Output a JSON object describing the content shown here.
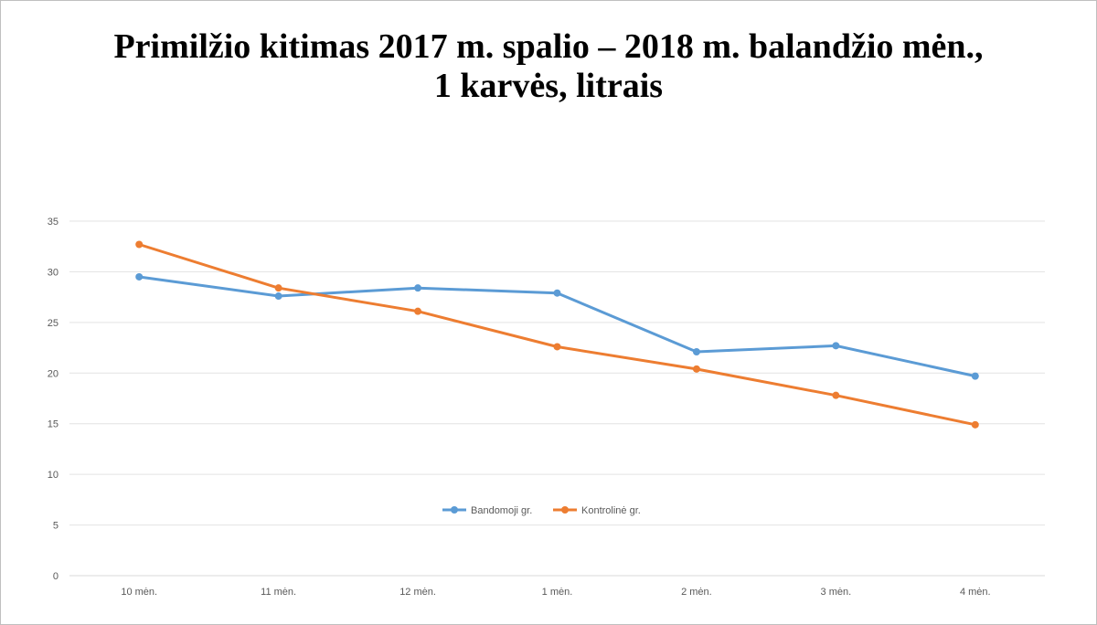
{
  "chart_data": {
    "type": "line",
    "title_line1": "Primilžio kitimas 2017 m. spalio – 2018 m. balandžio mėn.,",
    "title_line2": "1 karvės, litrais",
    "categories": [
      "10 mėn.",
      "11 mėn.",
      "12 mėn.",
      "1 mėn.",
      "2 mėn.",
      "3 mėn.",
      "4 mėn."
    ],
    "ylim": [
      0,
      35
    ],
    "yticks": [
      0,
      5,
      10,
      15,
      20,
      25,
      30,
      35
    ],
    "grid": true,
    "legend_position": "center",
    "series": [
      {
        "name": "Bandomoji gr.",
        "color": "#5b9bd5",
        "values": [
          29.5,
          27.6,
          28.4,
          27.9,
          22.1,
          22.7,
          19.7
        ]
      },
      {
        "name": "Kontrolinė gr.",
        "color": "#ed7d31",
        "values": [
          32.7,
          28.4,
          26.1,
          22.6,
          20.4,
          17.8,
          14.9
        ]
      }
    ]
  }
}
